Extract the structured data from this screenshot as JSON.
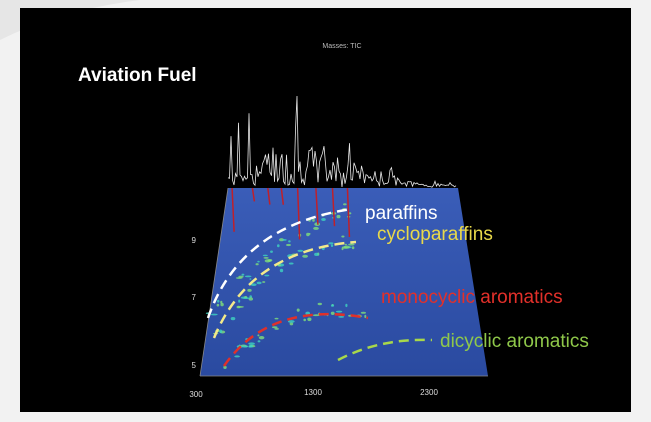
{
  "header": {
    "title": "Aviation Fuel",
    "trace_label": "Masses: TIC"
  },
  "annotations": [
    "paraffins",
    "cycloparaffins",
    "monocyclic aromatics",
    "dicyclic aromatics"
  ],
  "axes": {
    "y_ticks": [
      9,
      7,
      5
    ],
    "x_ticks": [
      300,
      1300,
      2300
    ]
  }
}
